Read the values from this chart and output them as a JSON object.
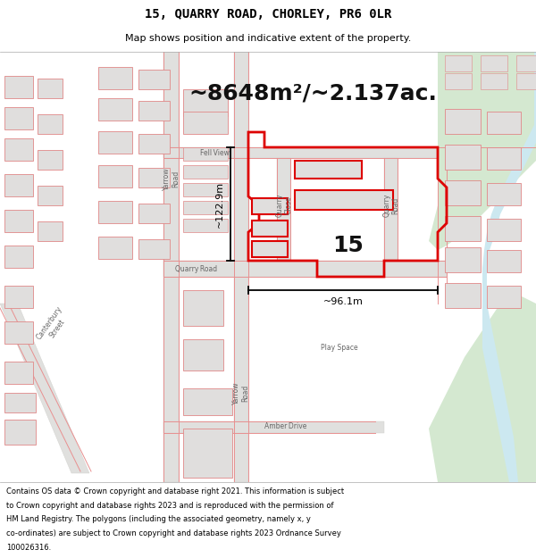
{
  "title_line1": "15, QUARRY ROAD, CHORLEY, PR6 0LR",
  "title_line2": "Map shows position and indicative extent of the property.",
  "area_text": "~8648m²/~2.137ac.",
  "label_15": "15",
  "dim_vertical": "~122.9m",
  "dim_horizontal": "~96.1m",
  "footer_text": "Contains OS data © Crown copyright and database right 2021. This information is subject to Crown copyright and database rights 2023 and is reproduced with the permission of HM Land Registry. The polygons (including the associated geometry, namely x, y co-ordinates) are subject to Crown copyright and database rights 2023 Ordnance Survey 100026316.",
  "map_bg": "#f8f8f6",
  "road_color": "#e0e0de",
  "road_stroke": "#d0d0cc",
  "building_fill": "#e0dedd",
  "building_stroke": "#e08888",
  "property_stroke": "#dd0000",
  "property_fill": "none",
  "green_fill": "#d4e8d0",
  "blue_fill": "#cce8f0",
  "red_road_color": "#e89090",
  "footer_bg": "#ffffff",
  "title_bg": "#ffffff",
  "title_fontsize": 10,
  "subtitle_fontsize": 8,
  "area_fontsize": 18,
  "label_fontsize": 18,
  "dim_fontsize": 8,
  "street_fontsize": 5.5,
  "footer_fontsize": 6.0
}
